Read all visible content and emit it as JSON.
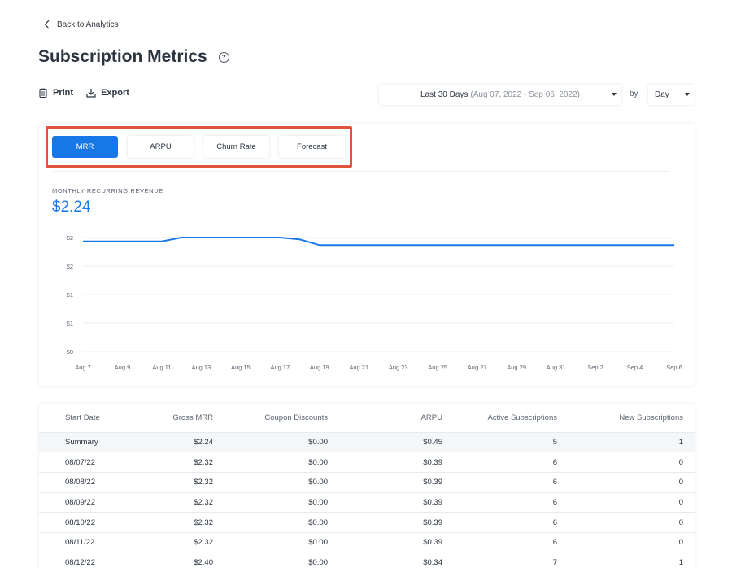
{
  "nav": {
    "back_label": "Back to Analytics"
  },
  "header": {
    "title": "Subscription Metrics"
  },
  "toolbar": {
    "print_label": "Print",
    "export_label": "Export"
  },
  "filters": {
    "range_label": "Last 30 Days",
    "range_dates": "(Aug 07, 2022 - Sep 06, 2022)",
    "by_label": "by",
    "granularity": "Day"
  },
  "tabs": [
    {
      "label": "MRR",
      "active": true
    },
    {
      "label": "ARPU",
      "active": false
    },
    {
      "label": "Churn Rate",
      "active": false
    },
    {
      "label": "Forecast",
      "active": false
    }
  ],
  "metric": {
    "label": "MONTHLY RECURRING REVENUE",
    "value": "$2.24"
  },
  "colors": {
    "accent": "#1877e6",
    "highlight_border": "#e0533d"
  },
  "chart_data": {
    "type": "line",
    "x": [
      "Aug 7",
      "Aug 8",
      "Aug 9",
      "Aug 10",
      "Aug 11",
      "Aug 12",
      "Aug 13",
      "Aug 14",
      "Aug 15",
      "Aug 16",
      "Aug 17",
      "Aug 18",
      "Aug 19",
      "Aug 20",
      "Aug 21",
      "Aug 22",
      "Aug 23",
      "Aug 24",
      "Aug 25",
      "Aug 26",
      "Aug 27",
      "Aug 28",
      "Aug 29",
      "Aug 30",
      "Aug 31",
      "Sep 1",
      "Sep 2",
      "Sep 3",
      "Sep 4",
      "Sep 5",
      "Sep 6"
    ],
    "x_tick_labels": [
      "Aug 7",
      "Aug 9",
      "Aug 11",
      "Aug 13",
      "Aug 15",
      "Aug 17",
      "Aug 19",
      "Aug 21",
      "Aug 23",
      "Aug 25",
      "Aug 27",
      "Aug 29",
      "Aug 31",
      "Sep 2",
      "Sep 4",
      "Sep 6"
    ],
    "y_tick_labels": [
      "$0",
      "$1",
      "$1",
      "$2",
      "$2"
    ],
    "y_tick_values": [
      0,
      0.6,
      1.2,
      1.8,
      2.4
    ],
    "ylim": [
      0,
      2.4
    ],
    "series": [
      {
        "values": [
          2.32,
          2.32,
          2.32,
          2.32,
          2.32,
          2.4,
          2.4,
          2.4,
          2.4,
          2.4,
          2.4,
          2.36,
          2.24,
          2.24,
          2.24,
          2.24,
          2.24,
          2.24,
          2.24,
          2.24,
          2.24,
          2.24,
          2.24,
          2.24,
          2.24,
          2.24,
          2.24,
          2.24,
          2.24,
          2.24,
          2.24
        ]
      }
    ],
    "grid": true,
    "legend": "none"
  },
  "table": {
    "columns": [
      "Start Date",
      "Gross MRR",
      "Coupon Discounts",
      "ARPU",
      "Active Subscriptions",
      "New Subscriptions"
    ],
    "rows": [
      [
        "Summary",
        "$2.24",
        "$0.00",
        "$0.45",
        "5",
        "1"
      ],
      [
        "08/07/22",
        "$2.32",
        "$0.00",
        "$0.39",
        "6",
        "0"
      ],
      [
        "08/08/22",
        "$2.32",
        "$0.00",
        "$0.39",
        "6",
        "0"
      ],
      [
        "08/09/22",
        "$2.32",
        "$0.00",
        "$0.39",
        "6",
        "0"
      ],
      [
        "08/10/22",
        "$2.32",
        "$0.00",
        "$0.39",
        "6",
        "0"
      ],
      [
        "08/11/22",
        "$2.32",
        "$0.00",
        "$0.39",
        "6",
        "0"
      ],
      [
        "08/12/22",
        "$2.40",
        "$0.00",
        "$0.34",
        "7",
        "1"
      ]
    ]
  }
}
